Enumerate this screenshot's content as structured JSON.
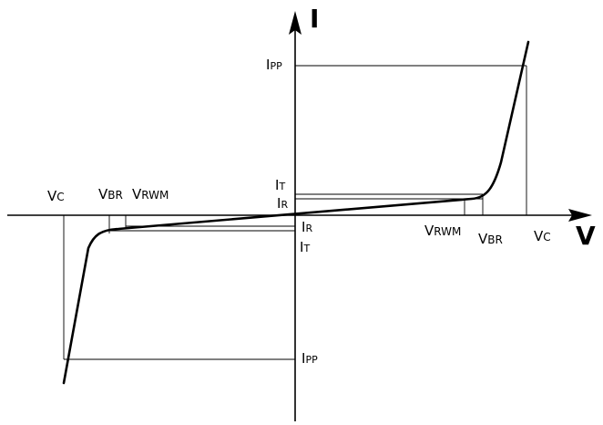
{
  "axes": {
    "current_label": "I",
    "voltage_label": "V"
  },
  "labels": {
    "ipp_top": {
      "main": "I",
      "sub": "PP"
    },
    "it_top": {
      "main": "I",
      "sub": "T"
    },
    "ir_top": {
      "main": "I",
      "sub": "R"
    },
    "ir_bottom": {
      "main": "I",
      "sub": "R"
    },
    "it_bottom": {
      "main": "I",
      "sub": "T"
    },
    "ipp_bottom": {
      "main": "I",
      "sub": "PP"
    },
    "vc_left": {
      "main": "V",
      "sub": "C"
    },
    "vbr_left": {
      "main": "V",
      "sub": "BR"
    },
    "vrwm_left": {
      "main": "V",
      "sub": "RWM"
    },
    "vrwm_right": {
      "main": "V",
      "sub": "RWM"
    },
    "vbr_right": {
      "main": "V",
      "sub": "BR"
    },
    "vc_right": {
      "main": "V",
      "sub": "C"
    }
  },
  "colors": {
    "stroke": "#000000",
    "background": "#ffffff"
  }
}
